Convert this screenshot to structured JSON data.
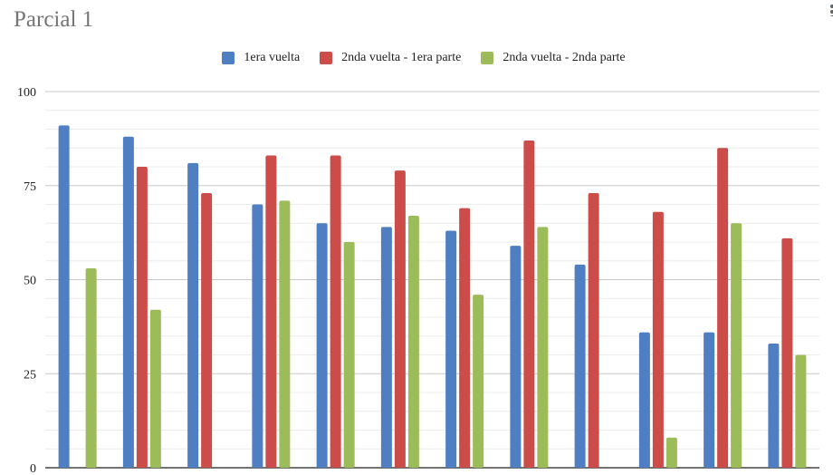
{
  "chart_data": {
    "type": "bar",
    "title": "Parcial 1",
    "xlabel": "",
    "ylabel": "",
    "ylim": [
      0,
      100
    ],
    "yticks": [
      0,
      25,
      50,
      75,
      100
    ],
    "grid": true,
    "legend_position": "top-center",
    "categories": [
      "",
      "",
      "",
      "",
      "",
      "",
      "",
      "",
      "",
      "",
      "",
      ""
    ],
    "series": [
      {
        "name": "1era vuelta",
        "color": "#4f7fc2",
        "values": [
          91,
          88,
          81,
          70,
          65,
          64,
          63,
          59,
          54,
          36,
          36,
          33
        ]
      },
      {
        "name": "2nda vuelta - 1era parte",
        "color": "#cc4c4a",
        "values": [
          null,
          80,
          73,
          83,
          83,
          79,
          69,
          87,
          73,
          68,
          85,
          61
        ]
      },
      {
        "name": "2nda vuelta - 2nda parte",
        "color": "#9cbb59",
        "values": [
          53,
          42,
          null,
          71,
          60,
          67,
          46,
          64,
          null,
          8,
          65,
          30
        ]
      }
    ]
  }
}
